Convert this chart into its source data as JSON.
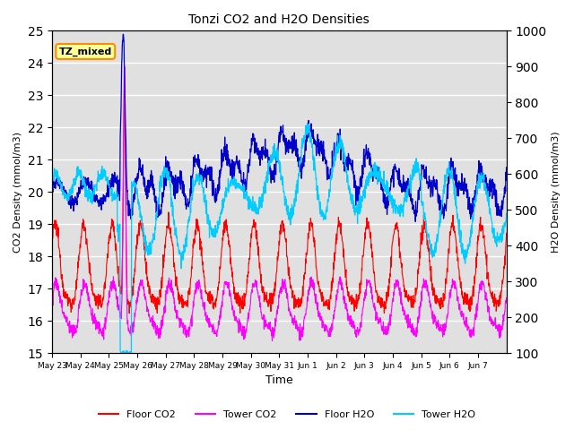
{
  "title": "Tonzi CO2 and H2O Densities",
  "xlabel": "Time",
  "ylabel_left": "CO2 Density (mmol/m3)",
  "ylabel_right": "H2O Density (mmol/m3)",
  "ylim_left": [
    15.0,
    25.0
  ],
  "ylim_right": [
    100,
    1000
  ],
  "yticks_left": [
    15.0,
    16.0,
    17.0,
    18.0,
    19.0,
    20.0,
    21.0,
    22.0,
    23.0,
    24.0,
    25.0
  ],
  "yticks_right": [
    100,
    200,
    300,
    400,
    500,
    600,
    700,
    800,
    900,
    1000
  ],
  "xtick_labels": [
    "May 23",
    "May 24",
    "May 25",
    "May 26",
    "May 27",
    "May 28",
    "May 29",
    "May 30",
    "May 31",
    "Jun 1",
    "Jun 2",
    "Jun 3",
    "Jun 4",
    "Jun 5",
    "Jun 6",
    "Jun 7"
  ],
  "annotation_text": "TZ_mixed",
  "annotation_bg": "#FFFF99",
  "annotation_ec": "#FF8C00",
  "colors": {
    "floor_co2": "#FF0000",
    "tower_co2": "#FF00FF",
    "floor_h2o": "#0000CC",
    "tower_h2o": "#00CCFF"
  },
  "legend_labels": [
    "Floor CO2",
    "Tower CO2",
    "Floor H2O",
    "Tower H2O"
  ],
  "bg_color": "#E0E0E0",
  "n_points": 1600
}
